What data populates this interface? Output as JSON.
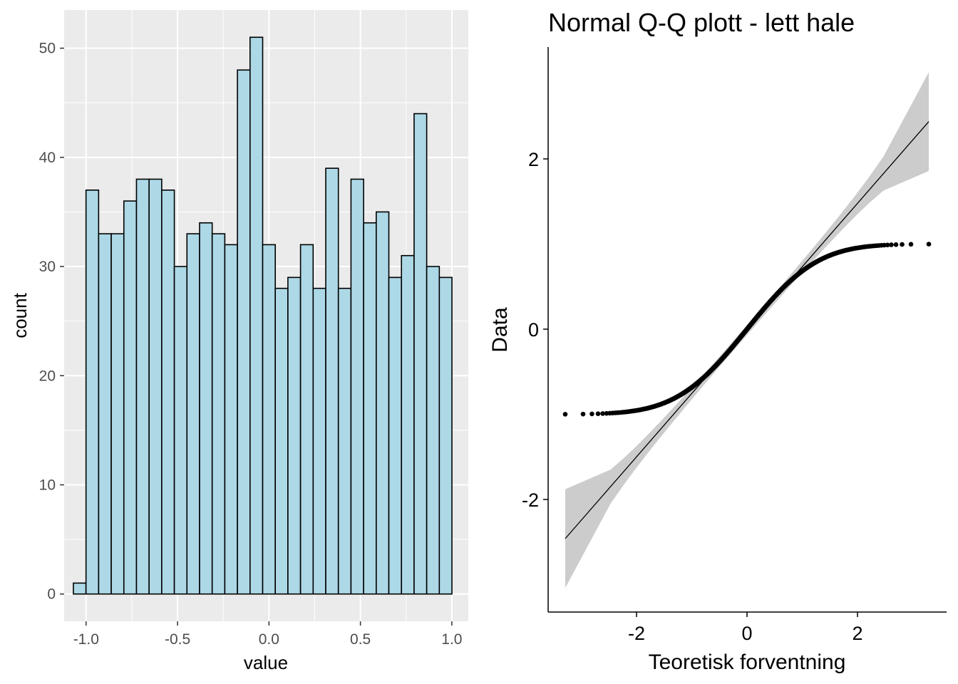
{
  "chart_data": [
    {
      "type": "bar",
      "subtype": "histogram",
      "title": "",
      "xlabel": "value",
      "ylabel": "count",
      "bin_width": 0.069,
      "bin_centers": [
        -1.035,
        -0.966,
        -0.897,
        -0.828,
        -0.759,
        -0.69,
        -0.621,
        -0.552,
        -0.483,
        -0.414,
        -0.345,
        -0.276,
        -0.207,
        -0.138,
        -0.069,
        0.0,
        0.069,
        0.138,
        0.207,
        0.276,
        0.345,
        0.414,
        0.483,
        0.552,
        0.621,
        0.69,
        0.759,
        0.828,
        0.897,
        0.966
      ],
      "values": [
        1,
        37,
        33,
        33,
        36,
        38,
        38,
        37,
        30,
        33,
        34,
        33,
        32,
        48,
        51,
        32,
        28,
        29,
        32,
        28,
        39,
        28,
        38,
        34,
        35,
        29,
        31,
        44,
        30,
        29
      ],
      "xlim": [
        -1.12,
        1.09
      ],
      "ylim": [
        -2.5,
        53.5
      ],
      "xticks": [
        -1.0,
        -0.5,
        0.0,
        0.5,
        1.0
      ],
      "xtick_labels": [
        "-1.0",
        "-0.5",
        "0.0",
        "0.5",
        "1.0"
      ],
      "yticks": [
        0,
        10,
        20,
        30,
        40,
        50
      ],
      "ytick_labels": [
        "0",
        "10",
        "20",
        "30",
        "40",
        "50"
      ],
      "fill_color": "#add8e6",
      "edge_color": "#000000",
      "panel_bg": "#ebebeb",
      "grid": true
    },
    {
      "type": "scatter",
      "subtype": "normal-qq",
      "title": "Normal Q-Q plott - lett hale",
      "xlabel": "Teoretisk forventning",
      "ylabel": "Data",
      "xlim": [
        -3.6,
        3.6
      ],
      "ylim": [
        -3.3,
        3.3
      ],
      "xticks": [
        -2,
        0,
        2
      ],
      "xtick_labels": [
        "-2",
        "0",
        "2"
      ],
      "yticks": [
        -2,
        0,
        2
      ],
      "ytick_labels": [
        "-2",
        "0",
        "2"
      ],
      "sample_size": 1000,
      "sample_range": [
        -1.0,
        1.0
      ],
      "reference_line": {
        "intercept": -0.0107,
        "slope": 0.7442,
        "x_range": [
          -3.29,
          3.29
        ]
      },
      "confidence_band_color": "#cccccc",
      "point_color": "#000000",
      "grid": false
    }
  ]
}
